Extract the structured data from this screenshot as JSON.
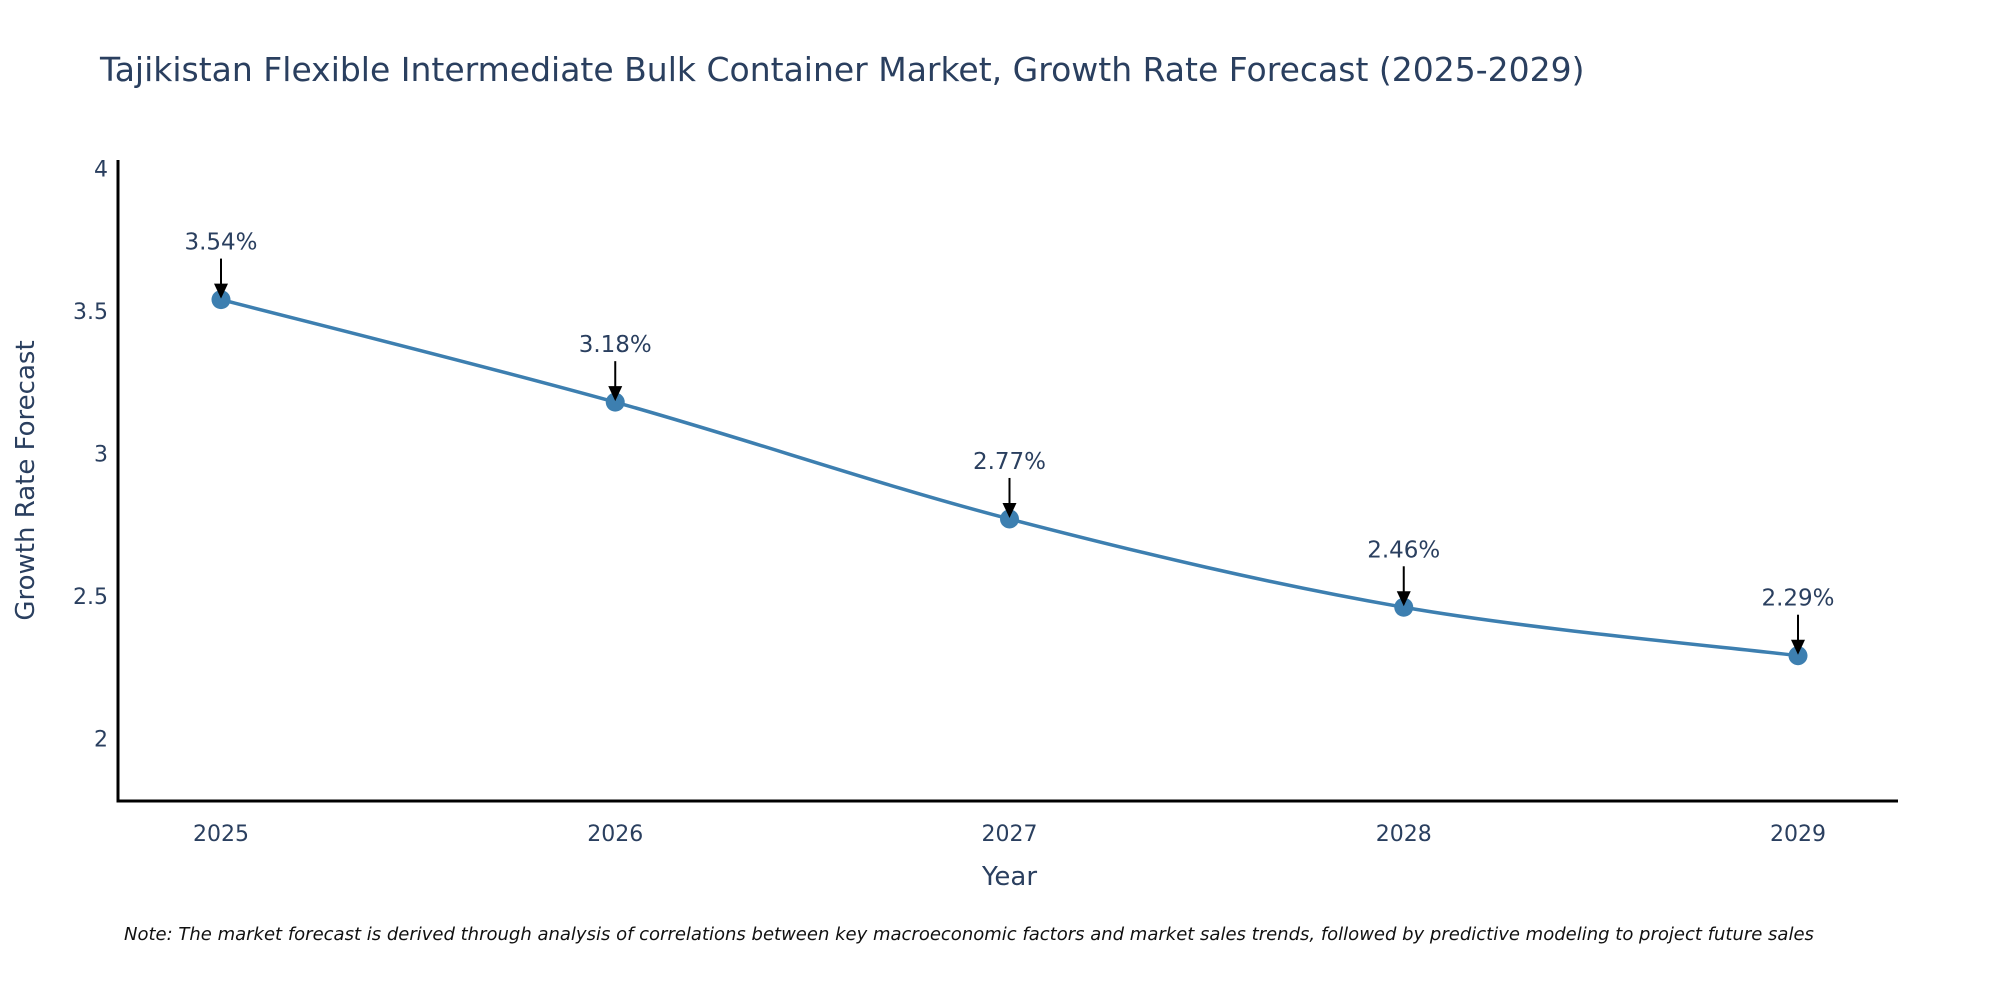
{
  "chart_data": {
    "type": "line",
    "title": "Tajikistan Flexible Intermediate Bulk Container Market, Growth Rate Forecast (2025-2029)",
    "xlabel": "Year",
    "ylabel": "Growth Rate Forecast",
    "categories": [
      "2025",
      "2026",
      "2027",
      "2028",
      "2029"
    ],
    "series": [
      {
        "name": "Growth Rate Forecast",
        "values": [
          3.54,
          3.18,
          2.77,
          2.46,
          2.29
        ],
        "color": "#3d7fb0"
      }
    ],
    "annotations": [
      "3.54%",
      "3.18%",
      "2.77%",
      "2.46%",
      "2.29%"
    ],
    "yticks": [
      2,
      2.5,
      3,
      3.5,
      4
    ],
    "ytick_labels": [
      "2",
      "2.5",
      "3",
      "3.5",
      "4"
    ],
    "ylim": [
      1.78,
      4.03
    ],
    "grid": false,
    "legend": "none",
    "note": "Note: The market forecast is derived through analysis of correlations between key macroeconomic factors and market sales trends, followed by predictive modeling to project future sales"
  }
}
